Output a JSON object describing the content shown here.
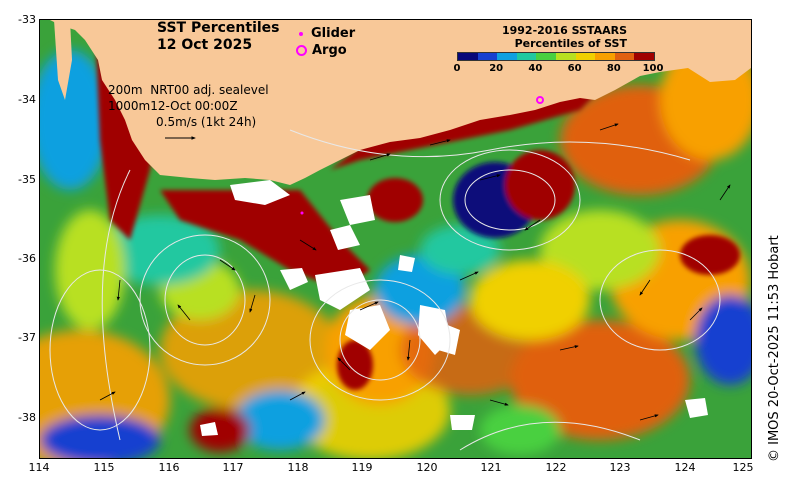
{
  "title": {
    "line1": "SST Percentiles",
    "line2": "12 Oct 2025"
  },
  "platforms": {
    "glider": "Glider",
    "argo": "Argo",
    "marker_color": "#ff00ff"
  },
  "colorbar": {
    "title_line1": "1992-2016 SSTAARS",
    "title_line2": "Percentiles of SST",
    "ticks": [
      "0",
      "20",
      "40",
      "60",
      "80",
      "100"
    ],
    "colors": [
      "#08087a",
      "#1840d0",
      "#10a0e0",
      "#20c8a0",
      "#48d040",
      "#b8e020",
      "#f0d000",
      "#f8a000",
      "#e06010",
      "#a00000"
    ]
  },
  "annotation": {
    "depth_a": "200m",
    "depth_b": "1000m",
    "product": "NRT00 adj. sealevel",
    "datetime": "12-Oct 00:00Z",
    "scale": "0.5m/s (1kt 24h)"
  },
  "axes": {
    "x_ticks": [
      "114",
      "115",
      "116",
      "117",
      "118",
      "119",
      "120",
      "121",
      "122",
      "123",
      "124",
      "125"
    ],
    "y_ticks": [
      "-33",
      "-34",
      "-35",
      "-36",
      "-37",
      "-38"
    ]
  },
  "credit": "© IMOS 20-Oct-2025 11:53 Hobart",
  "colors": {
    "land": "#f8c898",
    "cloud": "#ffffff",
    "contour": "#e8e8e8"
  }
}
